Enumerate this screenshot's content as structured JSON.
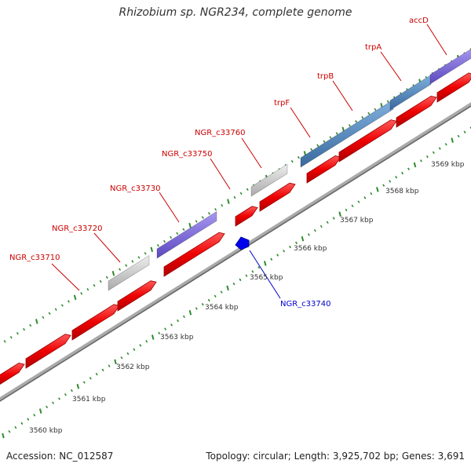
{
  "title": "Rhizobium sp. NGR234, complete genome",
  "accession": "Accession: NC_012587",
  "summary": "Topology: circular; Length: 3,925,702 bp; Genes: 3,691",
  "kbp_labels": [
    {
      "text": "3560 kbp"
    },
    {
      "text": "3561 kbp"
    },
    {
      "text": "3562 kbp"
    },
    {
      "text": "3563 kbp"
    },
    {
      "text": "3564 kbp"
    },
    {
      "text": "3565 kbp"
    },
    {
      "text": "3566 kbp"
    },
    {
      "text": "3567 kbp"
    },
    {
      "text": "3568 kbp"
    },
    {
      "text": "3569 kbp"
    }
  ],
  "genes": [
    {
      "name": "NGR_c33710",
      "color": "#cc0000"
    },
    {
      "name": "NGR_c33720",
      "color": "#cc0000"
    },
    {
      "name": "NGR_c33730",
      "color": "#cc0000"
    },
    {
      "name": "NGR_c33740",
      "color": "#0000cc"
    },
    {
      "name": "NGR_c33750",
      "color": "#cc0000"
    },
    {
      "name": "NGR_c33760",
      "color": "#cc0000"
    },
    {
      "name": "trpF",
      "color": "#cc0000"
    },
    {
      "name": "trpB",
      "color": "#cc0000"
    },
    {
      "name": "trpA",
      "color": "#cc0000"
    },
    {
      "name": "accD",
      "color": "#cc0000"
    }
  ],
  "colors": {
    "cds": "#ee0000",
    "gene_purple": "#7b68d8",
    "gene_grey": "#c8c8c8",
    "gene_blue": "#4a7fb5",
    "backbone": "#888888",
    "ticks": "#2e8b2e",
    "minus_strand": "#0000ee"
  }
}
